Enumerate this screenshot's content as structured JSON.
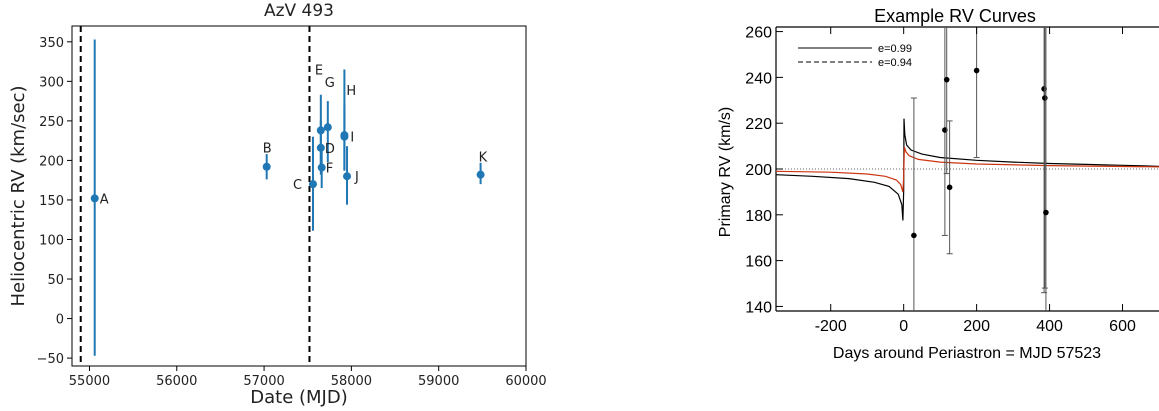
{
  "chart_data": [
    {
      "type": "scatter",
      "title": "AzV 493",
      "xlabel": "Date (MJD)",
      "ylabel": "Heliocentric RV (km/sec)",
      "xlim": [
        54800,
        60000
      ],
      "ylim": [
        -60,
        370
      ],
      "xticks": [
        "55000",
        "56000",
        "57000",
        "58000",
        "59000",
        "60000"
      ],
      "yticks": [
        "−50",
        "0",
        "50",
        "100",
        "150",
        "200",
        "250",
        "300",
        "350"
      ],
      "grid": false,
      "color": "#1f77b4",
      "vlines": [
        54900,
        57520
      ],
      "points": [
        {
          "label": "A",
          "x": 55060,
          "y": 152,
          "ylo": -47,
          "yhi": 353
        },
        {
          "label": "B",
          "x": 57030,
          "y": 192,
          "ylo": 176,
          "yhi": 208
        },
        {
          "label": "C",
          "x": 57560,
          "y": 170,
          "ylo": 111,
          "yhi": 230
        },
        {
          "label": "D",
          "x": 57650,
          "y": 216,
          "ylo": 182,
          "yhi": 251
        },
        {
          "label": "E",
          "x": 57650,
          "y": 238,
          "ylo": 192,
          "yhi": 283
        },
        {
          "label": "F",
          "x": 57660,
          "y": 191,
          "ylo": 165,
          "yhi": 217
        },
        {
          "label": "G",
          "x": 57730,
          "y": 242,
          "ylo": 198,
          "yhi": 275
        },
        {
          "label": "H",
          "x": 57920,
          "y": 232,
          "ylo": 187,
          "yhi": 315
        },
        {
          "label": "I",
          "x": 57920,
          "y": 230,
          "ylo": 188,
          "yhi": 270
        },
        {
          "label": "J",
          "x": 57950,
          "y": 180,
          "ylo": 144,
          "yhi": 218
        },
        {
          "label": "K",
          "x": 59480,
          "y": 182,
          "ylo": 170,
          "yhi": 197
        }
      ]
    },
    {
      "type": "line",
      "title": "Example RV Curves",
      "xlabel": "Days around Periastron = MJD 57523",
      "ylabel": "Primary RV (km/s)",
      "xlim": [
        -350,
        700
      ],
      "ylim": [
        138,
        262
      ],
      "xticks": [
        "-200",
        "0",
        "200",
        "400",
        "600"
      ],
      "yticks": [
        "140",
        "160",
        "180",
        "200",
        "220",
        "240",
        "260"
      ],
      "grid": false,
      "legend_position": "top-left",
      "reference_line": 200,
      "series": [
        {
          "name": "e=0.99",
          "color": "#000000",
          "dash": "solid",
          "x": [
            -350,
            -250,
            -150,
            -80,
            -40,
            -15,
            -5,
            -2,
            0,
            1,
            3,
            8,
            20,
            50,
            100,
            200,
            300,
            400,
            500,
            600,
            700
          ],
          "y": [
            197.5,
            196.8,
            195.8,
            194.2,
            192.4,
            189.0,
            184.5,
            177.5,
            191.0,
            222.0,
            215.0,
            210.5,
            208.3,
            206.5,
            205.0,
            203.8,
            203.0,
            202.4,
            202.0,
            201.6,
            201.2
          ]
        },
        {
          "name": "e=0.94",
          "color": "#cc3311",
          "dash": "solid",
          "x": [
            -350,
            -200,
            -100,
            -50,
            -20,
            -8,
            -2,
            0,
            2,
            6,
            15,
            40,
            100,
            200,
            400,
            700
          ],
          "y": [
            199.0,
            198.6,
            197.8,
            196.8,
            195.2,
            193.2,
            190.0,
            197.0,
            209.5,
            207.5,
            205.8,
            204.2,
            203.0,
            202.2,
            201.5,
            200.9
          ]
        }
      ],
      "points": [
        {
          "x": 28,
          "y": 171,
          "ylo": 111,
          "yhi": 231
        },
        {
          "x": 113,
          "y": 217,
          "ylo": 171,
          "yhi": 262
        },
        {
          "x": 118,
          "y": 239,
          "ylo": 198,
          "yhi": 262
        },
        {
          "x": 126,
          "y": 192,
          "ylo": 163,
          "yhi": 221
        },
        {
          "x": 200,
          "y": 243,
          "ylo": 205,
          "yhi": 262
        },
        {
          "x": 385,
          "y": 235,
          "ylo": 146,
          "yhi": 262
        },
        {
          "x": 387,
          "y": 231,
          "ylo": 148,
          "yhi": 262
        },
        {
          "x": 390,
          "y": 181,
          "ylo": 138,
          "yhi": 262
        }
      ]
    }
  ]
}
